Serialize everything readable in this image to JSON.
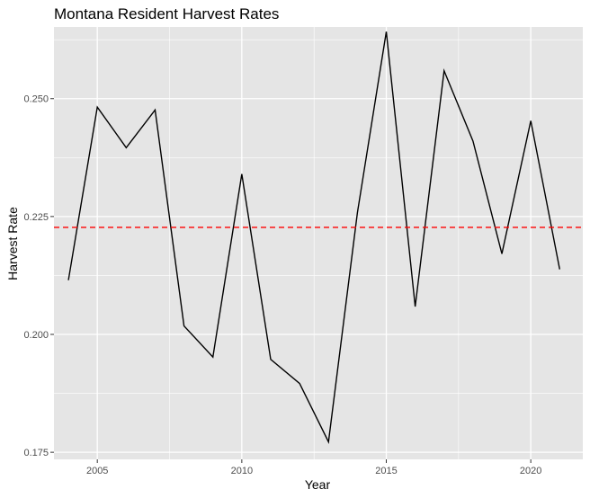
{
  "chart_data": {
    "type": "line",
    "title": "Montana Resident Harvest Rates",
    "xlabel": "Year",
    "ylabel": "Harvest Rate",
    "xlim": [
      2003.5,
      2021.8
    ],
    "ylim": [
      0.1735,
      0.2652
    ],
    "x_ticks": [
      2005,
      2010,
      2015,
      2020
    ],
    "x_tick_labels": [
      "2005",
      "2010",
      "2015",
      "2020"
    ],
    "y_ticks": [
      0.175,
      0.2,
      0.225,
      0.25
    ],
    "y_tick_labels": [
      "0.175",
      "0.200",
      "0.225",
      "0.250"
    ],
    "grid": true,
    "legend": "none",
    "series": [
      {
        "x": [
          2004,
          2005,
          2006,
          2007,
          2008,
          2009,
          2010,
          2011,
          2012,
          2013,
          2014,
          2015,
          2016,
          2017,
          2018,
          2019,
          2020,
          2021
        ],
        "values": [
          0.2115,
          0.2482,
          0.2396,
          0.2476,
          0.2018,
          0.1952,
          0.234,
          0.1947,
          0.1896,
          0.1772,
          0.2258,
          0.2642,
          0.2059,
          0.2559,
          0.241,
          0.2171,
          0.2453,
          0.2138
        ],
        "color": "#000000"
      }
    ],
    "reference_line": {
      "orientation": "horizontal",
      "value": 0.2227,
      "style": "dashed",
      "color": "#ff0000"
    },
    "panel_background": "#e5e5e5",
    "grid_color": "#ffffff"
  }
}
